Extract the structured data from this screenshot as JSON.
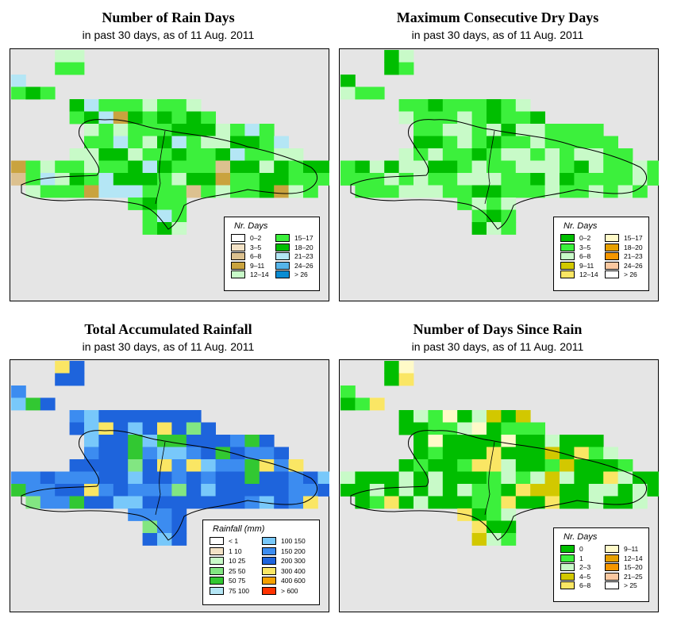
{
  "panels": [
    {
      "title": "Number of Rain Days",
      "subtitle": "in past 30 days, as of  11 Aug. 2011",
      "legend": {
        "title": "Nr. Days",
        "items": [
          {
            "label": "0–2",
            "color": "#ffffff"
          },
          {
            "label": "3–5",
            "color": "#f3e2c6"
          },
          {
            "label": "6–8",
            "color": "#dcc18f"
          },
          {
            "label": "9–11",
            "color": "#c9a33f"
          },
          {
            "label": "12–14",
            "color": "#c8fac8"
          },
          {
            "label": "15–17",
            "color": "#3cf03c"
          },
          {
            "label": "18–20",
            "color": "#00be00"
          },
          {
            "label": "21–23",
            "color": "#b4e6f5"
          },
          {
            "label": "24–26",
            "color": "#56b4e8"
          },
          {
            "label": "> 26",
            "color": "#0a8cd2"
          }
        ]
      }
    },
    {
      "title": "Maximum Consecutive Dry Days",
      "subtitle": "in past 30 days, as of  11 Aug. 2011",
      "legend": {
        "title": "Nr. Days",
        "items": [
          {
            "label": "0–2",
            "color": "#00be00"
          },
          {
            "label": "3–5",
            "color": "#3cf03c"
          },
          {
            "label": "6–8",
            "color": "#c8fac8"
          },
          {
            "label": "9–11",
            "color": "#d2c800"
          },
          {
            "label": "12–14",
            "color": "#fae664"
          },
          {
            "label": "15–17",
            "color": "#fffac8"
          },
          {
            "label": "18–20",
            "color": "#e6a000"
          },
          {
            "label": "21–23",
            "color": "#f59600"
          },
          {
            "label": "24–26",
            "color": "#fac8a0"
          },
          {
            "label": "> 26",
            "color": "#ffffff"
          }
        ]
      }
    },
    {
      "title": "Total Accumulated Rainfall",
      "subtitle": "in past 30 days, as of  11 Aug. 2011",
      "legend": {
        "title": "Rainfall (mm)",
        "items": [
          {
            "label": "< 1",
            "color": "#ffffff"
          },
          {
            "label": "1     10",
            "color": "#f3e2c6"
          },
          {
            "label": "10     25",
            "color": "#c8fac8"
          },
          {
            "label": "25     50",
            "color": "#82e682"
          },
          {
            "label": "50     75",
            "color": "#32c832"
          },
          {
            "label": "75   100",
            "color": "#b4e6f5"
          },
          {
            "label": "100   150",
            "color": "#78c8fa"
          },
          {
            "label": "150   200",
            "color": "#3c8cf0"
          },
          {
            "label": "200   300",
            "color": "#1e64dc"
          },
          {
            "label": "300   400",
            "color": "#fae664"
          },
          {
            "label": "400   600",
            "color": "#f5a000"
          },
          {
            "label": "> 600",
            "color": "#ff3200"
          }
        ]
      }
    },
    {
      "title": "Number of Days Since Rain",
      "subtitle": "in past 30 days, as of  11 Aug. 2011",
      "legend": {
        "title": "Nr. Days",
        "items": [
          {
            "label": "0",
            "color": "#00be00"
          },
          {
            "label": "1",
            "color": "#3cf03c"
          },
          {
            "label": "2–3",
            "color": "#c8fac8"
          },
          {
            "label": "4–5",
            "color": "#d2c800"
          },
          {
            "label": "6–8",
            "color": "#fae664"
          },
          {
            "label": "9–11",
            "color": "#fffac8"
          },
          {
            "label": "12–14",
            "color": "#e6a000"
          },
          {
            "label": "15–20",
            "color": "#f59600"
          },
          {
            "label": "21–25",
            "color": "#fac8a0"
          },
          {
            "label": "> 25",
            "color": "#ffffff"
          }
        ]
      }
    }
  ]
}
